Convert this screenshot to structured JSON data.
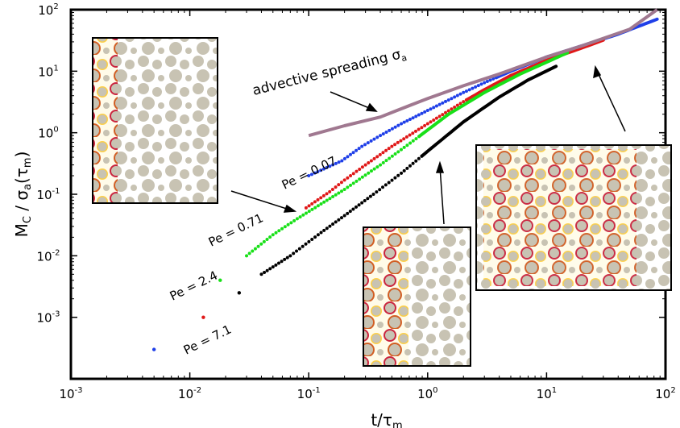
{
  "chart_data": {
    "type": "scatter",
    "xlabel": "t/τm",
    "ylabel": "MC / σa(τm)",
    "xscale": "log",
    "yscale": "log",
    "xlim": [
      0.001,
      100
    ],
    "ylim": [
      0.0001,
      100
    ],
    "x_ticks": [
      {
        "base": "10",
        "exp": "-3",
        "value": 0.001
      },
      {
        "base": "10",
        "exp": "-2",
        "value": 0.01
      },
      {
        "base": "10",
        "exp": "-1",
        "value": 0.1
      },
      {
        "base": "10",
        "exp": "0",
        "value": 1
      },
      {
        "base": "10",
        "exp": "1",
        "value": 10
      },
      {
        "base": "10",
        "exp": "2",
        "value": 100
      }
    ],
    "y_ticks": [
      {
        "base": "10",
        "exp": "-3",
        "value": 0.001
      },
      {
        "base": "10",
        "exp": "-2",
        "value": 0.01
      },
      {
        "base": "10",
        "exp": "-1",
        "value": 0.1
      },
      {
        "base": "10",
        "exp": "0",
        "value": 1
      },
      {
        "base": "10",
        "exp": "1",
        "value": 10
      },
      {
        "base": "10",
        "exp": "2",
        "value": 100
      }
    ],
    "series": [
      {
        "name": "Pe = 0.07",
        "color": "#1f3fe8",
        "style": "dots+line",
        "points": [
          [
            0.005,
            0.0003
          ],
          [
            0.1,
            0.2
          ],
          [
            0.19,
            0.35
          ],
          [
            0.28,
            0.6
          ],
          [
            0.4,
            0.9
          ],
          [
            0.6,
            1.4
          ],
          [
            1.0,
            2.3
          ],
          [
            2,
            4.5
          ],
          [
            3,
            6.5
          ],
          [
            5,
            10
          ],
          [
            10,
            17
          ],
          [
            20,
            26
          ],
          [
            40,
            40
          ],
          [
            85,
            70
          ]
        ]
      },
      {
        "name": "Pe = 0.71",
        "color": "#e01818",
        "style": "dots+line",
        "points": [
          [
            0.013,
            0.001
          ],
          [
            0.095,
            0.06
          ],
          [
            0.15,
            0.11
          ],
          [
            0.2,
            0.17
          ],
          [
            0.3,
            0.3
          ],
          [
            0.5,
            0.6
          ],
          [
            1.0,
            1.4
          ],
          [
            2,
            3.2
          ],
          [
            3,
            5
          ],
          [
            5,
            8.5
          ],
          [
            10,
            15
          ],
          [
            20,
            24
          ],
          [
            30,
            32
          ]
        ]
      },
      {
        "name": "Pe = 2.4",
        "color": "#18e018",
        "style": "dots+line",
        "points": [
          [
            0.018,
            0.004
          ],
          [
            0.03,
            0.01
          ],
          [
            0.05,
            0.022
          ],
          [
            0.08,
            0.04
          ],
          [
            0.12,
            0.065
          ],
          [
            0.2,
            0.12
          ],
          [
            0.4,
            0.3
          ],
          [
            0.8,
            0.8
          ],
          [
            1.5,
            2
          ],
          [
            3,
            4.5
          ],
          [
            6,
            9
          ],
          [
            10,
            14
          ],
          [
            15,
            20
          ]
        ]
      },
      {
        "name": "Pe = 7.1",
        "color": "#000000",
        "style": "dots+line",
        "points": [
          [
            0.026,
            0.0025
          ],
          [
            0.04,
            0.005
          ],
          [
            0.07,
            0.01
          ],
          [
            0.12,
            0.022
          ],
          [
            0.2,
            0.045
          ],
          [
            0.35,
            0.1
          ],
          [
            0.6,
            0.22
          ],
          [
            1.0,
            0.5
          ],
          [
            2,
            1.5
          ],
          [
            4,
            3.8
          ],
          [
            7,
            7.2
          ],
          [
            12,
            12
          ]
        ]
      },
      {
        "name": "advective spreading σa",
        "color": "#a07890",
        "style": "line",
        "points": [
          [
            0.1,
            0.9
          ],
          [
            0.2,
            1.3
          ],
          [
            0.4,
            1.8
          ],
          [
            0.55,
            2.3
          ],
          [
            1.0,
            3.6
          ],
          [
            2,
            5.8
          ],
          [
            4,
            9
          ],
          [
            10,
            17
          ],
          [
            20,
            26
          ],
          [
            50,
            48
          ],
          [
            85,
            100
          ]
        ]
      }
    ],
    "annotations": [
      {
        "label": "advective spreading σa",
        "text": "advective spreading σ",
        "sub": "a"
      },
      {
        "label": "Pe = 0.07"
      },
      {
        "label": "Pe = 0.71"
      },
      {
        "label": "Pe = 2.4"
      },
      {
        "label": "Pe = 7.1"
      }
    ]
  }
}
